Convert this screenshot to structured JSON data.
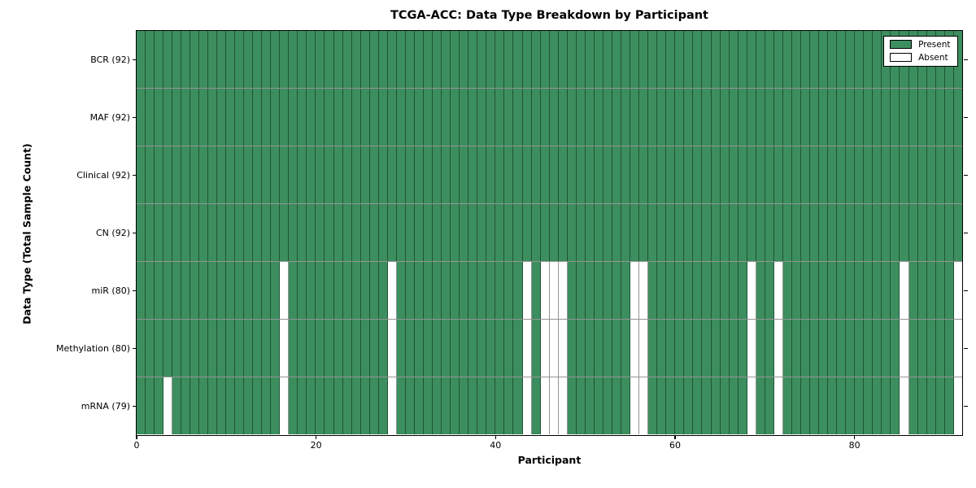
{
  "chart_data": {
    "type": "heatmap",
    "title": "TCGA-ACC: Data Type Breakdown by Participant",
    "xlabel": "Participant",
    "ylabel": "Data Type (Total Sample Count)",
    "n_participants": 92,
    "x_range": [
      0,
      92
    ],
    "x_ticks": [
      0,
      20,
      40,
      60,
      80
    ],
    "grid": "cell-edges",
    "legend_position": "upper right",
    "rows": [
      {
        "label": "BCR (92)",
        "total": 92,
        "absent_participants": []
      },
      {
        "label": "MAF (92)",
        "total": 92,
        "absent_participants": []
      },
      {
        "label": "Clinical (92)",
        "total": 92,
        "absent_participants": []
      },
      {
        "label": "CN (92)",
        "total": 92,
        "absent_participants": []
      },
      {
        "label": "miR (80)",
        "total": 80,
        "absent_participants": [
          16,
          28,
          43,
          45,
          46,
          47,
          55,
          56,
          68,
          71,
          85,
          91
        ]
      },
      {
        "label": "Methylation (80)",
        "total": 80,
        "absent_participants": [
          16,
          28,
          43,
          45,
          46,
          47,
          55,
          56,
          68,
          71,
          85,
          91
        ]
      },
      {
        "label": "mRNA (79)",
        "total": 79,
        "absent_participants": [
          3,
          16,
          28,
          43,
          45,
          46,
          47,
          55,
          56,
          68,
          71,
          85,
          91
        ]
      }
    ],
    "legend": [
      {
        "label": "Present",
        "color": "#3c8e5e"
      },
      {
        "label": "Absent",
        "color": "#ffffff"
      }
    ],
    "colors": {
      "present": "#3c8e5e",
      "absent": "#ffffff",
      "grid_line": "rgba(0,0,0,0.42)",
      "spine": "#000000",
      "background": "#ffffff"
    }
  }
}
